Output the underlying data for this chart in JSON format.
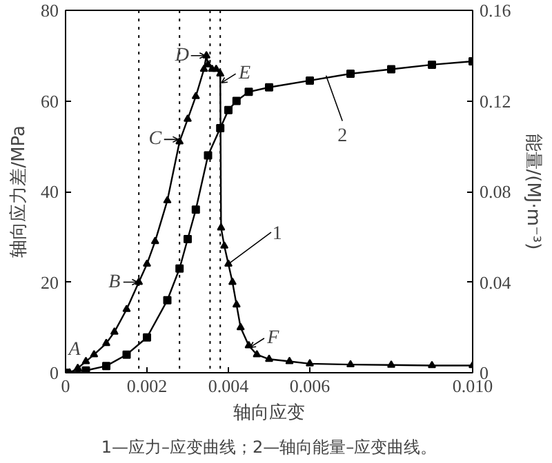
{
  "chart_data": {
    "type": "line",
    "xlabel": "轴向应变",
    "ylabel": "轴向应力差/MPa",
    "y2label": "能量/(MJ·m⁻³)",
    "xlim": [
      0,
      0.01
    ],
    "xticks": [
      0,
      0.002,
      0.004,
      0.006,
      {
        "value": 0.01,
        "label": "0.010"
      }
    ],
    "ylim": [
      0,
      80
    ],
    "yticks": [
      0,
      20,
      40,
      60,
      80
    ],
    "y2lim": [
      0,
      0.16
    ],
    "y2ticks": [
      0,
      0.04,
      0.08,
      0.12,
      0.16
    ],
    "grid": false,
    "line_style": "solid",
    "series": [
      {
        "color": "#000000",
        "marker": "triangle",
        "x": [
          0.0001,
          0.0003,
          0.0005,
          0.0007,
          0.001,
          0.0012,
          0.0015,
          0.0018,
          0.002,
          0.0022,
          0.0025,
          0.0028,
          0.003,
          0.0032,
          0.0034,
          0.00346,
          0.0035,
          0.0036,
          0.0037,
          0.0038,
          0.00382,
          0.0039,
          0.004,
          0.0041,
          0.0042,
          0.0043,
          0.0045,
          0.0047,
          0.005,
          0.0055,
          0.006,
          0.007,
          0.008,
          0.009,
          0.01
        ],
        "values": [
          0,
          1,
          2.5,
          4,
          6.5,
          9,
          14,
          20,
          24,
          29,
          38,
          51,
          56,
          61,
          67,
          70,
          68,
          67,
          67,
          66,
          32,
          28,
          24,
          20,
          15,
          10,
          6,
          4,
          3,
          2.5,
          2,
          1.8,
          1.7,
          1.6,
          1.6
        ]
      },
      {
        "color": "#000000",
        "marker": "square",
        "axis": "y2",
        "x": [
          0,
          0.0005,
          0.001,
          0.0015,
          0.002,
          0.0025,
          0.0028,
          0.003,
          0.0032,
          0.0035,
          0.0038,
          0.004,
          0.0042,
          0.0045,
          0.005,
          0.006,
          0.007,
          0.008,
          0.009,
          0.01
        ],
        "values": [
          0,
          0.001,
          0.003,
          0.008,
          0.0156,
          0.032,
          0.046,
          0.059,
          0.072,
          0.096,
          0.108,
          0.116,
          0.12,
          0.124,
          0.126,
          0.129,
          0.132,
          0.134,
          0.136,
          0.1375
        ]
      }
    ],
    "ref_lines": [
      {
        "axis": "x",
        "value": 0.0018,
        "line_style": "dotted"
      },
      {
        "axis": "x",
        "value": 0.0028,
        "line_style": "dotted"
      },
      {
        "axis": "x",
        "value": 0.00355,
        "line_style": "dotted"
      },
      {
        "axis": "x",
        "value": 0.0038,
        "line_style": "dotted"
      }
    ],
    "annotations": [
      {
        "text": "A",
        "x": 0,
        "y": 0
      },
      {
        "text": "B",
        "x": 0.0018,
        "y": 20
      },
      {
        "text": "C",
        "x": 0.0028,
        "y": 51.5
      },
      {
        "text": "D",
        "x": 0.00346,
        "y": 70
      },
      {
        "text": "E",
        "x": 0.0038,
        "y": 64
      },
      {
        "text": "F",
        "x": 0.0045,
        "y": 5.6
      },
      {
        "text": "1",
        "x": 0.004,
        "y": 24
      },
      {
        "text": "2",
        "x": 0.0064,
        "y": 65.6
      },
      "1—应力–应变曲线；2—轴向能量–应变曲线。"
    ]
  }
}
